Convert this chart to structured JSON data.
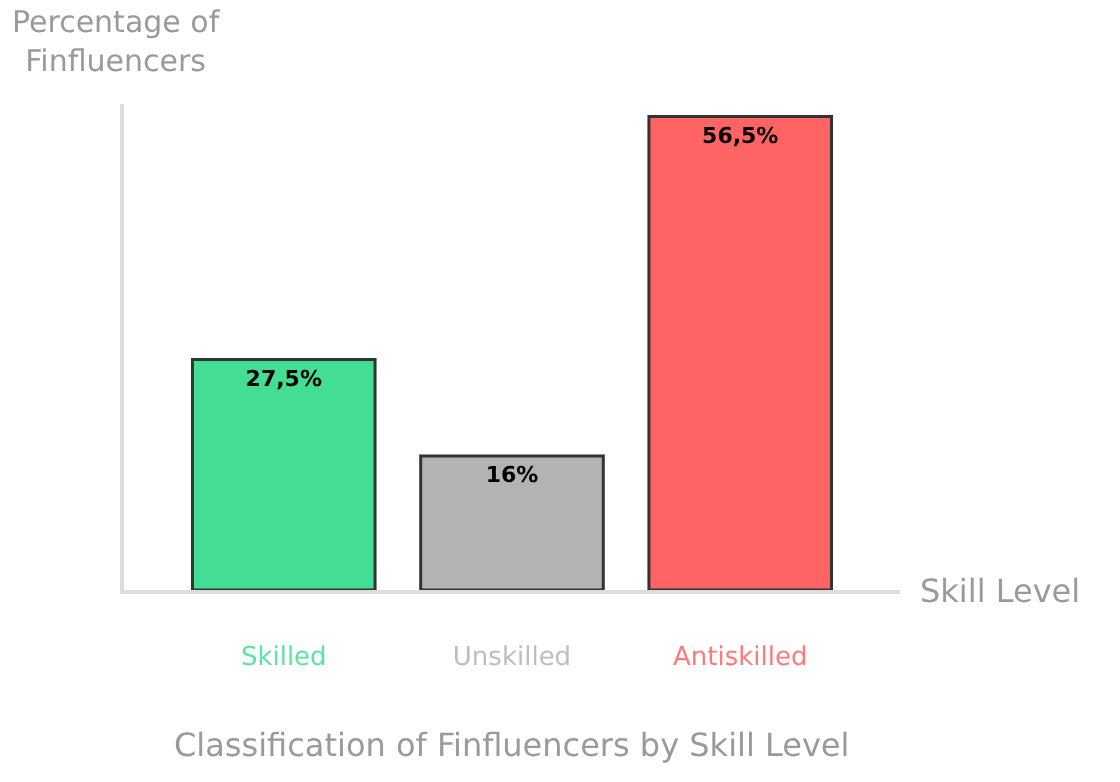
{
  "chart_data": {
    "type": "bar",
    "title": "Classification of Finfluencers by Skill Level",
    "xlabel": "Skill Level",
    "ylabel": "Percentage of\nFinfluencers",
    "categories": [
      "Skilled",
      "Unskilled",
      "Antiskilled"
    ],
    "values": [
      27.5,
      16,
      56.5
    ],
    "value_labels": [
      "27,5%",
      "16%",
      "56,5%"
    ],
    "colors": [
      "#43de93",
      "#b3b3b3",
      "#ff6464"
    ],
    "ylim": [
      0,
      58
    ],
    "tick_labels": "x",
    "legend": false
  }
}
